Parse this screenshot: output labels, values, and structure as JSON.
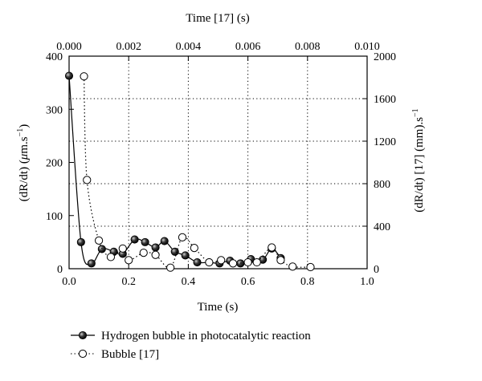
{
  "chart_data": {
    "type": "line",
    "bottom_axis": {
      "label": "Time (s)",
      "range": [
        0.0,
        1.0
      ],
      "ticks": [
        "0.0",
        "0.2",
        "0.4",
        "0.6",
        "0.8",
        "1.0"
      ]
    },
    "top_axis": {
      "label": "Time [17] (s)",
      "range": [
        0.0,
        0.01
      ],
      "ticks": [
        "0.000",
        "0.002",
        "0.004",
        "0.006",
        "0.008",
        "0.010"
      ]
    },
    "left_axis": {
      "label_main": "(dR/dt) (",
      "label_mu": "μ",
      "label_unit": "m.s",
      "label_sup": "−1",
      "label_end": ")",
      "range": [
        0,
        400
      ],
      "ticks": [
        "0",
        "100",
        "200",
        "300",
        "400"
      ]
    },
    "right_axis": {
      "label_main": "(dR/dt) [17] (mm).s",
      "label_sup": "−1",
      "range": [
        0,
        2000
      ],
      "ticks": [
        "0",
        "400",
        "800",
        "1200",
        "1600",
        "2000"
      ]
    },
    "grid": "dotted",
    "legend_position": "bottom",
    "series": [
      {
        "name": "Hydrogen bubble in photocatalytic reaction",
        "x_axis": "bottom",
        "y_axis": "left",
        "marker": "filled-circle",
        "line": "solid",
        "color": "#000000",
        "x": [
          0.0,
          0.04,
          0.075,
          0.11,
          0.15,
          0.18,
          0.22,
          0.255,
          0.29,
          0.32,
          0.355,
          0.39,
          0.43,
          0.47,
          0.505,
          0.54,
          0.575,
          0.61,
          0.65,
          0.68,
          0.71
        ],
        "y": [
          363,
          50,
          10,
          37,
          32,
          28,
          55,
          50,
          40,
          52,
          32,
          25,
          12,
          12,
          10,
          15,
          10,
          18,
          17,
          38,
          20
        ]
      },
      {
        "name": "Bubble [17]",
        "x_axis": "top",
        "y_axis": "right",
        "marker": "open-circle",
        "line": "dotted",
        "color": "#000000",
        "x": [
          0.0005,
          0.0006,
          0.001,
          0.0014,
          0.0018,
          0.002,
          0.0025,
          0.0029,
          0.0034,
          0.0038,
          0.0042,
          0.0047,
          0.0051,
          0.0055,
          0.006,
          0.0063,
          0.0068,
          0.0071,
          0.0075,
          0.0081
        ],
        "y": [
          1810,
          835,
          265,
          110,
          190,
          80,
          150,
          130,
          10,
          295,
          195,
          60,
          80,
          50,
          60,
          60,
          200,
          80,
          20,
          15
        ]
      }
    ]
  }
}
